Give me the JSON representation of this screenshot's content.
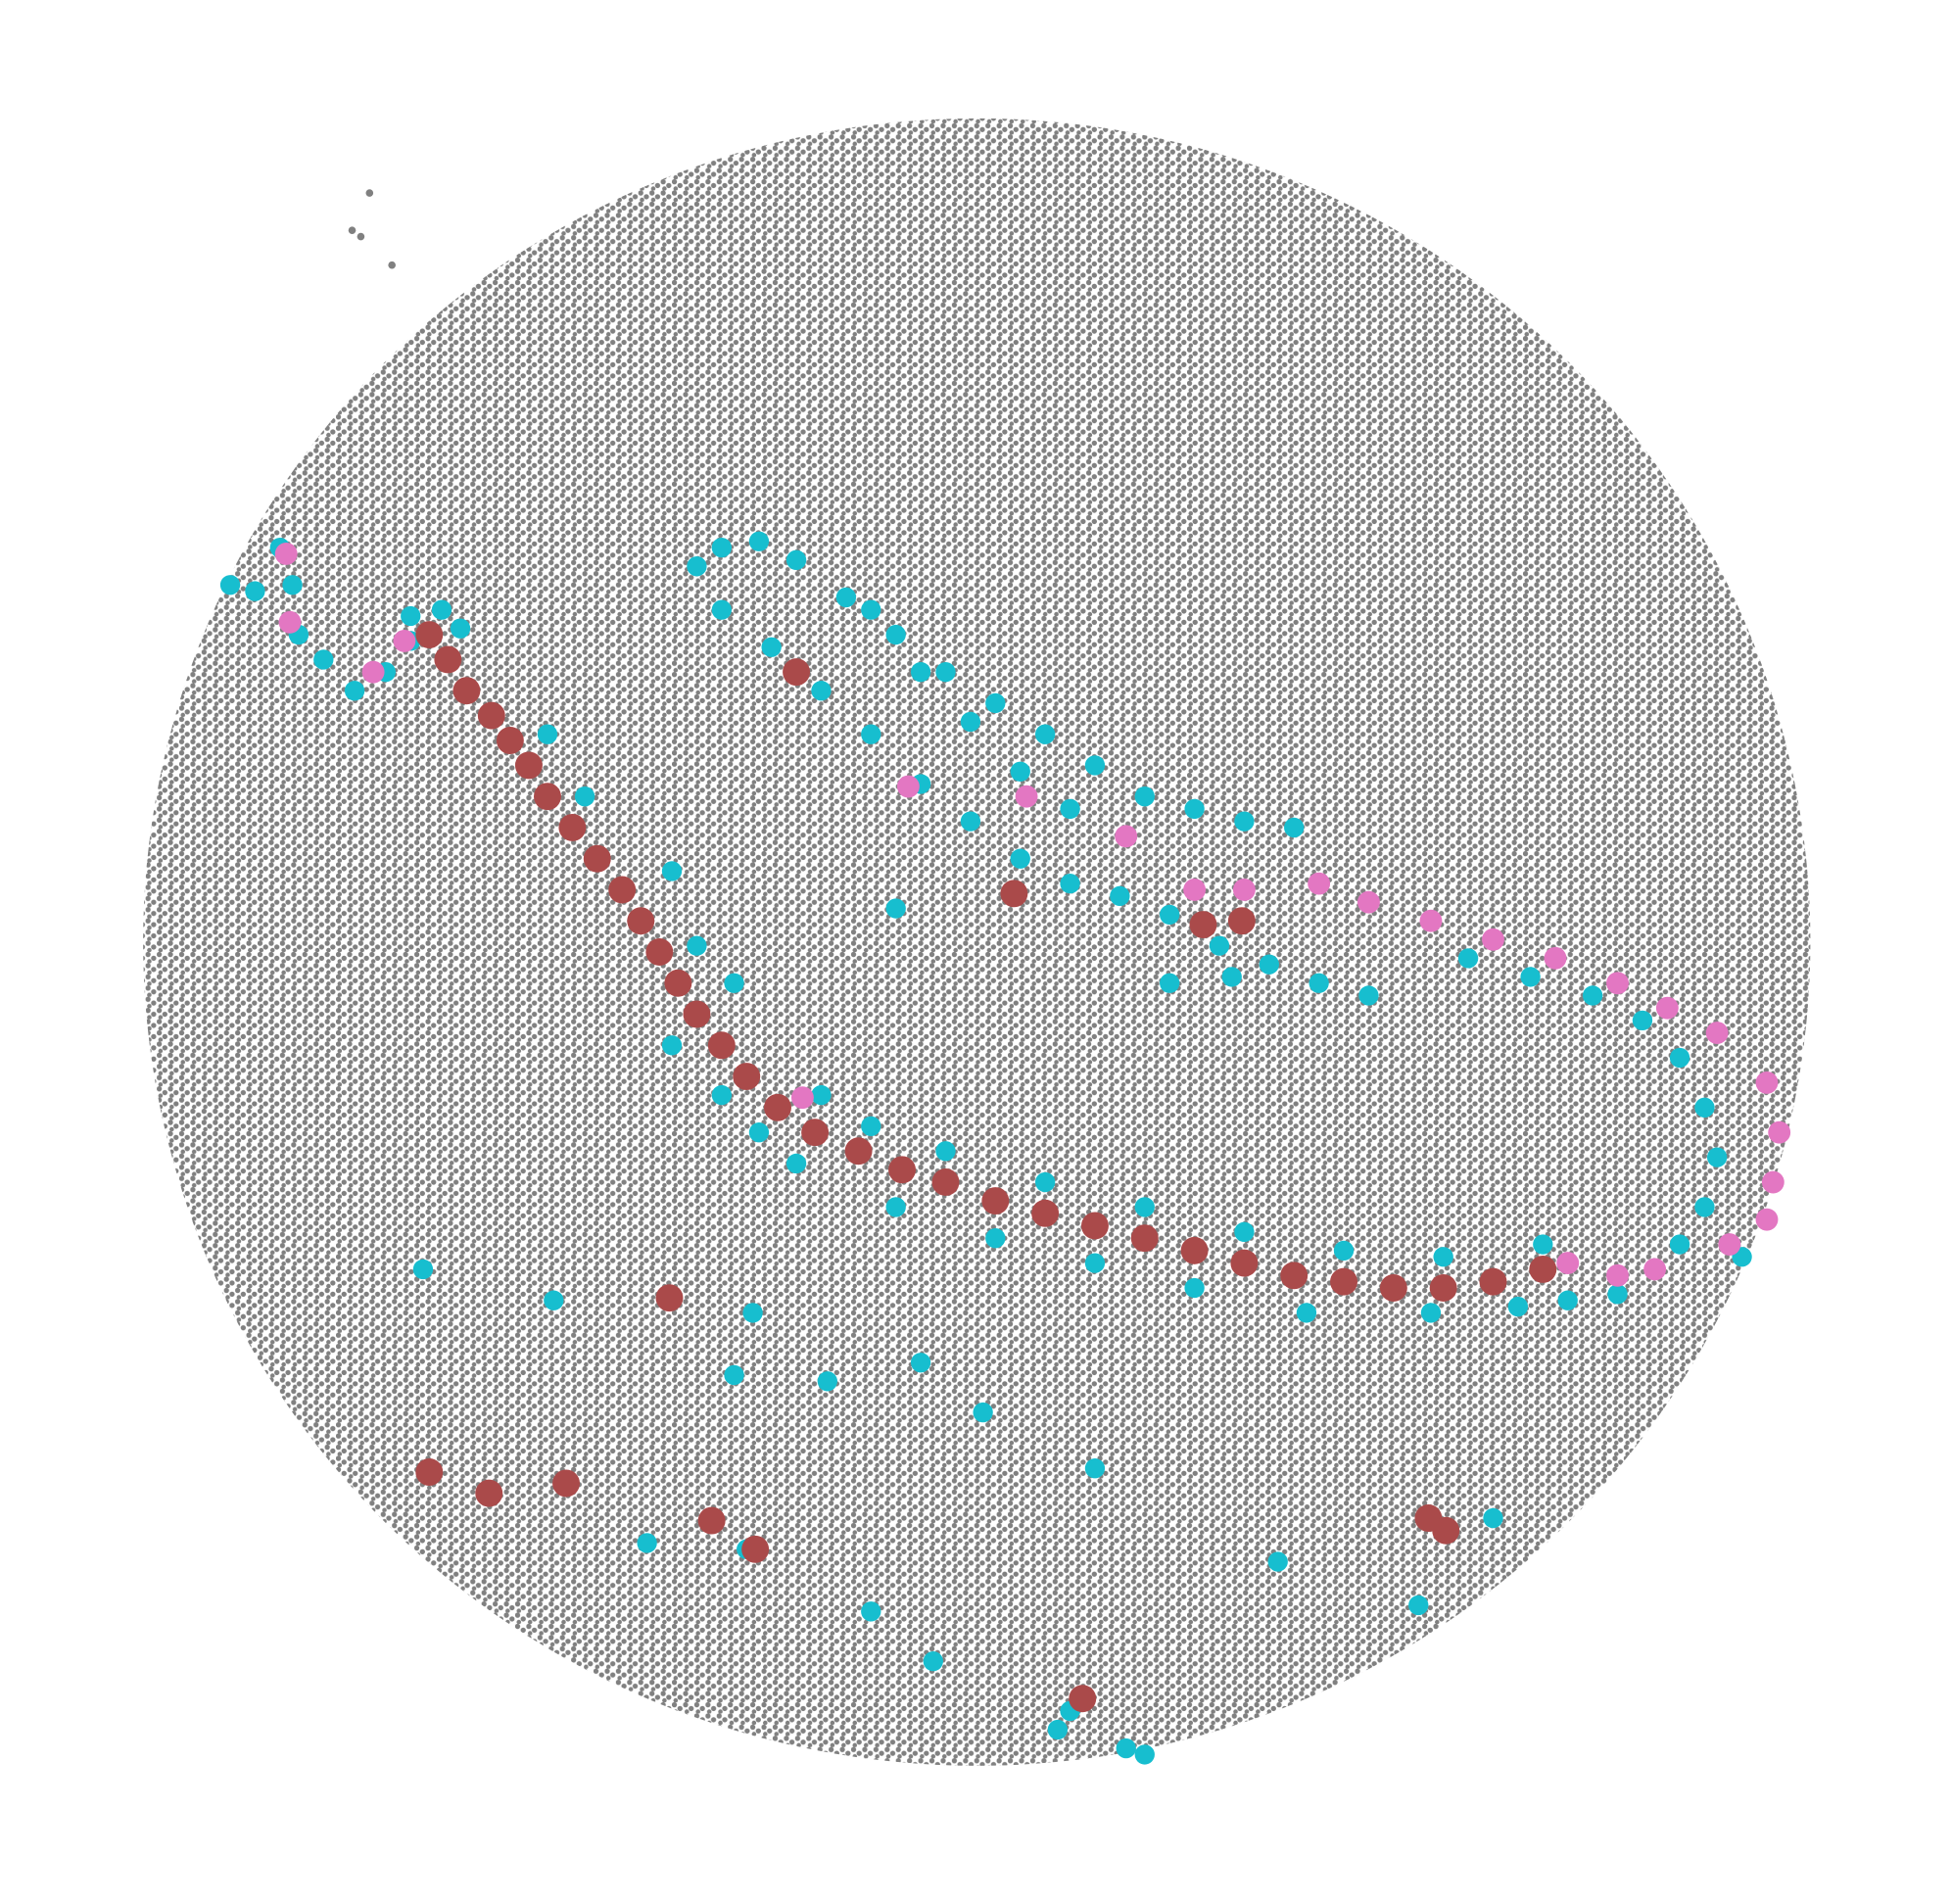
{
  "chart_data": {
    "type": "scatter",
    "xlim": [
      0,
      1568
    ],
    "ylim": [
      1530,
      0
    ],
    "series": [
      {
        "color": "#808080",
        "x": [
          297,
          290,
          315,
          283
        ],
        "y": [
          155,
          190,
          213,
          185
        ]
      },
      {
        "color": "#17becf",
        "x": [
          330,
          370,
          440,
          470,
          540,
          560,
          590,
          540,
          580,
          610,
          660,
          700,
          760,
          840,
          920,
          1000,
          1080,
          1160,
          1240,
          1050,
          960,
          880,
          800,
          720,
          640,
          1150,
          1220,
          560,
          580,
          610,
          640,
          680,
          720,
          760,
          800,
          840,
          880,
          920,
          960,
          1000,
          1040,
          580,
          620,
          660,
          700,
          740,
          780,
          820,
          860,
          900,
          940,
          980,
          1020,
          1060,
          1100,
          700,
          740,
          780,
          820,
          860,
          940,
          990,
          1180,
          1230,
          1280,
          1320,
          1350,
          1370,
          1380,
          1370,
          1350,
          1300,
          1260,
          1400,
          185,
          205,
          225,
          235,
          240,
          260,
          285,
          310,
          330,
          355,
          590,
          600,
          520,
          700,
          750,
          850,
          905,
          880,
          740,
          340,
          445,
          605,
          665,
          1200,
          1140,
          1027,
          790,
          720,
          920,
          860
        ],
        "y": [
          495,
          505,
          590,
          640,
          700,
          760,
          790,
          840,
          880,
          910,
          880,
          905,
          925,
          950,
          970,
          990,
          1005,
          1010,
          1000,
          1055,
          1035,
          1015,
          995,
          970,
          935,
          1055,
          1050,
          455,
          440,
          435,
          450,
          480,
          510,
          540,
          565,
          590,
          615,
          640,
          650,
          660,
          665,
          490,
          520,
          555,
          590,
          630,
          660,
          690,
          710,
          720,
          735,
          760,
          775,
          790,
          800,
          490,
          540,
          580,
          620,
          650,
          790,
          785,
          770,
          785,
          800,
          820,
          850,
          890,
          930,
          970,
          1000,
          1040,
          1045,
          1010,
          470,
          475,
          440,
          470,
          510,
          530,
          555,
          540,
          515,
          490,
          1105,
          1245,
          1240,
          1295,
          1335,
          1390,
          1405,
          1180,
          1095,
          1020,
          1045,
          1055,
          1110,
          1220,
          1290,
          1255,
          1135,
          730,
          1410,
          1375
        ]
      },
      {
        "color": "#aa4a4a",
        "x": [
          345,
          360,
          375,
          395,
          410,
          425,
          440,
          460,
          480,
          500,
          515,
          530,
          545,
          560,
          580,
          600,
          625,
          655,
          690,
          725,
          760,
          800,
          840,
          880,
          920,
          960,
          1000,
          1040,
          1080,
          1120,
          1160,
          1200,
          1240,
          345,
          393,
          455,
          572,
          607,
          870,
          1148,
          1162,
          538,
          640,
          815,
          967,
          998
        ],
        "y": [
          510,
          530,
          555,
          575,
          595,
          615,
          640,
          665,
          690,
          715,
          740,
          765,
          790,
          815,
          840,
          865,
          890,
          910,
          925,
          940,
          950,
          965,
          975,
          985,
          995,
          1005,
          1015,
          1025,
          1030,
          1035,
          1035,
          1030,
          1020,
          1183,
          1200,
          1192,
          1222,
          1245,
          1365,
          1220,
          1230,
          1043,
          540,
          718,
          743,
          740
        ]
      },
      {
        "color": "#e377c2",
        "x": [
          960,
          1000,
          1060,
          1100,
          1150,
          1200,
          1250,
          1300,
          1340,
          1380,
          1420,
          1430,
          1425,
          1420,
          1390,
          1330,
          1300,
          1260,
          230,
          233,
          300,
          325,
          825,
          905,
          645,
          730
        ],
        "y": [
          715,
          715,
          710,
          725,
          740,
          755,
          770,
          790,
          810,
          830,
          870,
          910,
          950,
          980,
          1000,
          1020,
          1025,
          1015,
          445,
          500,
          540,
          515,
          640,
          672,
          882,
          632
        ]
      }
    ]
  }
}
